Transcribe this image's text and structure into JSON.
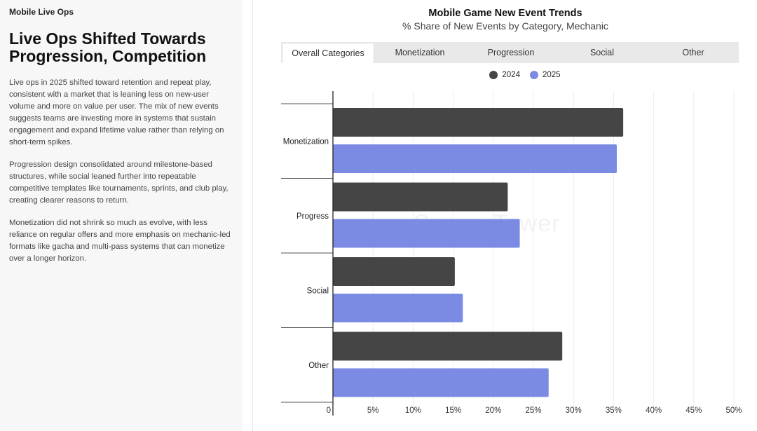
{
  "left": {
    "eyebrow": "Mobile Live Ops",
    "headline": "Live Ops Shifted Towards Progression, Competition",
    "paragraphs": [
      "Live ops in 2025 shifted toward retention and repeat play, consistent with a market that is leaning less on new-user volume and more on value per user. The mix of new events suggests teams are investing more in systems that sustain engagement and expand lifetime value rather than relying on short-term spikes.",
      "Progression design consolidated around milestone-based structures, while social leaned further into repeatable competitive templates like tournaments, sprints, and club play, creating clearer reasons to return.",
      "Monetization did not shrink so much as evolve, with less reliance on regular offers and more emphasis on mechanic-led formats like gacha and multi-pass systems that can monetize over a longer horizon."
    ]
  },
  "tabs": [
    {
      "label": "Overall Categories",
      "active": true
    },
    {
      "label": "Monetization",
      "active": false
    },
    {
      "label": "Progression",
      "active": false
    },
    {
      "label": "Social",
      "active": false
    },
    {
      "label": "Other",
      "active": false
    }
  ],
  "watermark": "SensorTower",
  "colors": {
    "s2024": "#454545",
    "s2025": "#7b8be4"
  },
  "chart_data": {
    "type": "bar",
    "orientation": "horizontal",
    "title": "Mobile Game New Event Trends",
    "subtitle": "% Share of New Events by Category, Mechanic",
    "categories": [
      "Monetization",
      "Progress",
      "Social",
      "Other"
    ],
    "series": [
      {
        "name": "2024",
        "values": [
          36.2,
          21.8,
          15.2,
          28.6
        ]
      },
      {
        "name": "2025",
        "values": [
          35.4,
          23.3,
          16.2,
          26.9
        ]
      }
    ],
    "xlim": [
      0,
      50
    ],
    "xticks": [
      0,
      5,
      10,
      15,
      20,
      25,
      30,
      35,
      40,
      45,
      50
    ],
    "xtick_labels": [
      "0",
      "5%",
      "10%",
      "15%",
      "20%",
      "25%",
      "30%",
      "35%",
      "40%",
      "45%",
      "50%"
    ],
    "legend": "top-center",
    "grid": true
  }
}
